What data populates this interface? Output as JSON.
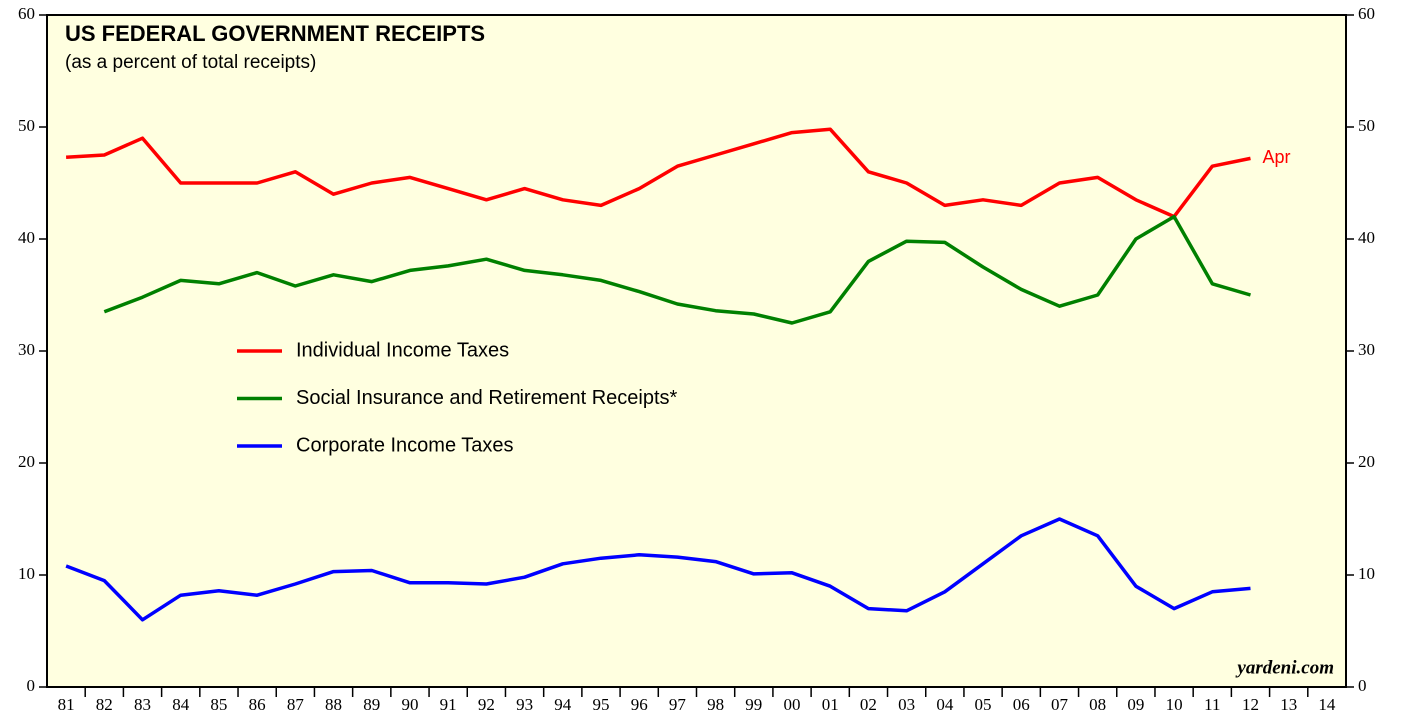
{
  "chart_data": {
    "type": "line",
    "title": "US FEDERAL GOVERNMENT RECEIPTS",
    "subtitle": "(as a percent of total receipts)",
    "source": "yardeni.com",
    "annotation": "Apr",
    "categories": [
      "81",
      "82",
      "83",
      "84",
      "85",
      "86",
      "87",
      "88",
      "89",
      "90",
      "91",
      "92",
      "93",
      "94",
      "95",
      "96",
      "97",
      "98",
      "99",
      "00",
      "01",
      "02",
      "03",
      "04",
      "05",
      "06",
      "07",
      "08",
      "09",
      "10",
      "11",
      "12",
      "13",
      "14"
    ],
    "series": [
      {
        "name": "Individual Income Taxes",
        "color": "#ff0000",
        "values": [
          47.3,
          47.5,
          49.0,
          45.0,
          45.0,
          45.0,
          46.0,
          44.0,
          45.0,
          45.5,
          44.5,
          43.5,
          44.5,
          43.5,
          43.0,
          44.5,
          46.5,
          47.5,
          48.5,
          49.5,
          49.8,
          46.0,
          45.0,
          43.0,
          43.5,
          43.0,
          45.0,
          45.5,
          43.5,
          42.0,
          46.5,
          47.2,
          null,
          null
        ]
      },
      {
        "name": "Social Insurance and Retirement Receipts*",
        "color": "#008000",
        "values": [
          null,
          33.5,
          34.8,
          36.3,
          36.0,
          37.0,
          35.8,
          36.8,
          36.2,
          37.2,
          37.6,
          38.2,
          37.2,
          36.8,
          36.3,
          35.3,
          34.2,
          33.6,
          33.3,
          32.5,
          33.5,
          38.0,
          39.8,
          39.7,
          37.5,
          35.5,
          34.0,
          35.0,
          40.0,
          42.0,
          36.0,
          35.0,
          null,
          null
        ]
      },
      {
        "name": "Corporate Income Taxes",
        "color": "#0000ff",
        "values": [
          10.8,
          9.5,
          6.0,
          8.2,
          8.6,
          8.2,
          9.2,
          10.3,
          10.4,
          9.3,
          9.3,
          9.2,
          9.8,
          11.0,
          11.5,
          11.8,
          11.6,
          11.2,
          10.1,
          10.2,
          9.0,
          7.0,
          6.8,
          8.5,
          11.0,
          13.5,
          15.0,
          13.5,
          9.0,
          7.0,
          8.5,
          8.8,
          null,
          null
        ]
      }
    ],
    "ylim": [
      0,
      60
    ],
    "yticks": [
      0,
      10,
      20,
      30,
      40,
      50,
      60
    ],
    "y2lim": [
      0,
      60
    ],
    "y2ticks": [
      0,
      10,
      20,
      30,
      40,
      50,
      60
    ],
    "background": "#ffffe0"
  }
}
